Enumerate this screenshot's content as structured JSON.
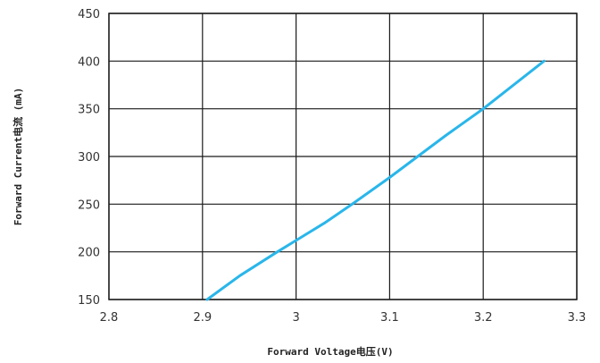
{
  "chart_data": {
    "type": "line",
    "title": "",
    "xlabel": "Forward Voltage电压(V)",
    "ylabel": "Forward Current电流 (mA)",
    "xlim": [
      2.8,
      3.3
    ],
    "ylim": [
      150,
      450
    ],
    "x_ticks": [
      "2.8",
      "2.9",
      "3",
      "3.1",
      "3.2",
      "3.3"
    ],
    "y_ticks": [
      "150",
      "200",
      "250",
      "300",
      "350",
      "400",
      "450"
    ],
    "grid": true,
    "series": [
      {
        "color": "#29b6ea",
        "x": [
          2.905,
          2.94,
          2.98,
          3.0,
          3.03,
          3.06,
          3.1,
          3.13,
          3.16,
          3.2,
          3.23,
          3.265
        ],
        "y": [
          150,
          175,
          200,
          212,
          230,
          250,
          278,
          300,
          322,
          350,
          373,
          400
        ]
      }
    ]
  }
}
